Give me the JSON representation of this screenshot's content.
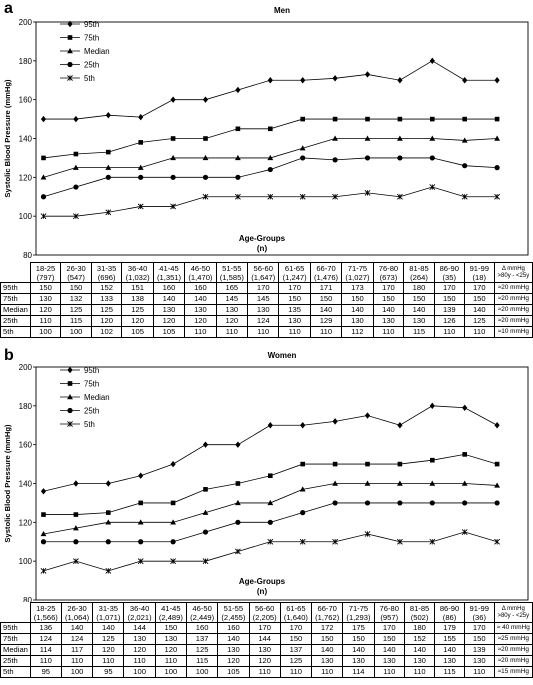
{
  "chart_data": [
    {
      "panel": "a",
      "type": "line",
      "title": "Men",
      "ylabel": "Systolic Blood Pressure (mmHg)",
      "xlabel": "Age-Groups",
      "xlabel2": "(n)",
      "ylim": [
        80,
        200
      ],
      "yticks": [
        80,
        100,
        120,
        140,
        160,
        180,
        200
      ],
      "grid": false,
      "legend": "top-left",
      "categories": [
        "18-25",
        "26-30",
        "31-35",
        "36-40",
        "41-45",
        "46-50",
        "51-55",
        "56-60",
        "61-65",
        "66-70",
        "71-75",
        "76-80",
        "81-85",
        "86-90",
        "91-99"
      ],
      "counts": [
        "(797)",
        "(547)",
        "(696)",
        "(1,032)",
        "(1,351)",
        "(1,470)",
        "(1,585)",
        "(1,647)",
        "(1,247)",
        "(1,476)",
        "(1,027)",
        "(673)",
        "(264)",
        "(35)",
        "(18)"
      ],
      "delta_header": [
        "Δ mmHg",
        ">80y - <25y"
      ],
      "series": [
        {
          "name": "95th",
          "marker": "diamond",
          "values": [
            150,
            150,
            152,
            151,
            160,
            160,
            165,
            170,
            170,
            171,
            173,
            170,
            180,
            170,
            170
          ],
          "delta": "≈20 mmHg"
        },
        {
          "name": "75th",
          "marker": "square",
          "values": [
            130,
            132,
            133,
            138,
            140,
            140,
            145,
            145,
            150,
            150,
            150,
            150,
            150,
            150,
            150
          ],
          "delta": "≈20 mmHg"
        },
        {
          "name": "Median",
          "marker": "triangle",
          "values": [
            120,
            125,
            125,
            125,
            130,
            130,
            130,
            130,
            135,
            140,
            140,
            140,
            140,
            139,
            140
          ],
          "delta": "≈20 mmHg"
        },
        {
          "name": "25th",
          "marker": "circle",
          "values": [
            110,
            115,
            120,
            120,
            120,
            120,
            120,
            124,
            130,
            129,
            130,
            130,
            130,
            126,
            125
          ],
          "delta": "≈20 mmHg"
        },
        {
          "name": "5th",
          "marker": "star",
          "values": [
            100,
            100,
            102,
            105,
            105,
            110,
            110,
            110,
            110,
            110,
            112,
            110,
            115,
            110,
            110
          ],
          "delta": "≈10 mmHg"
        }
      ]
    },
    {
      "panel": "b",
      "type": "line",
      "title": "Women",
      "ylabel": "Systolic Blood Pressure (mmHg)",
      "xlabel": "Age-Groups",
      "xlabel2": "(n)",
      "ylim": [
        80,
        200
      ],
      "yticks": [
        80,
        100,
        120,
        140,
        160,
        180,
        200
      ],
      "grid": false,
      "legend": "top-left",
      "categories": [
        "18-25",
        "26-30",
        "31-35",
        "36-40",
        "41-45",
        "46-50",
        "51-55",
        "56-60",
        "61-65",
        "66-70",
        "71-75",
        "76-80",
        "81-85",
        "86-90",
        "91-99"
      ],
      "counts": [
        "(1,566)",
        "(1,064)",
        "(1,071)",
        "(2,021)",
        "(2,489)",
        "(2,449)",
        "(2,455)",
        "(2,205)",
        "(1,640)",
        "(1,762)",
        "(1,293)",
        "(957)",
        "(502)",
        "(86)",
        "(36)"
      ],
      "delta_header": [
        "Δ mmHg",
        ">80y - <25y"
      ],
      "series": [
        {
          "name": "95th",
          "marker": "diamond",
          "values": [
            136,
            140,
            140,
            144,
            150,
            160,
            160,
            170,
            170,
            172,
            175,
            170,
            180,
            179,
            170
          ],
          "delta": "≈ 40 mmHg"
        },
        {
          "name": "75th",
          "marker": "square",
          "values": [
            124,
            124,
            125,
            130,
            130,
            137,
            140,
            144,
            150,
            150,
            150,
            150,
            152,
            155,
            150
          ],
          "delta": "≈25 mmHg"
        },
        {
          "name": "Median",
          "marker": "triangle",
          "values": [
            114,
            117,
            120,
            120,
            120,
            125,
            130,
            130,
            137,
            140,
            140,
            140,
            140,
            140,
            139
          ],
          "delta": "≈20 mmHg"
        },
        {
          "name": "25th",
          "marker": "circle",
          "values": [
            110,
            110,
            110,
            110,
            110,
            115,
            120,
            120,
            125,
            130,
            130,
            130,
            130,
            130,
            130
          ],
          "delta": "≈20 mmHg"
        },
        {
          "name": "5th",
          "marker": "star",
          "values": [
            95,
            100,
            95,
            100,
            100,
            100,
            105,
            110,
            110,
            110,
            114,
            110,
            110,
            115,
            110
          ],
          "delta": "≈15 mmHg"
        }
      ]
    }
  ]
}
